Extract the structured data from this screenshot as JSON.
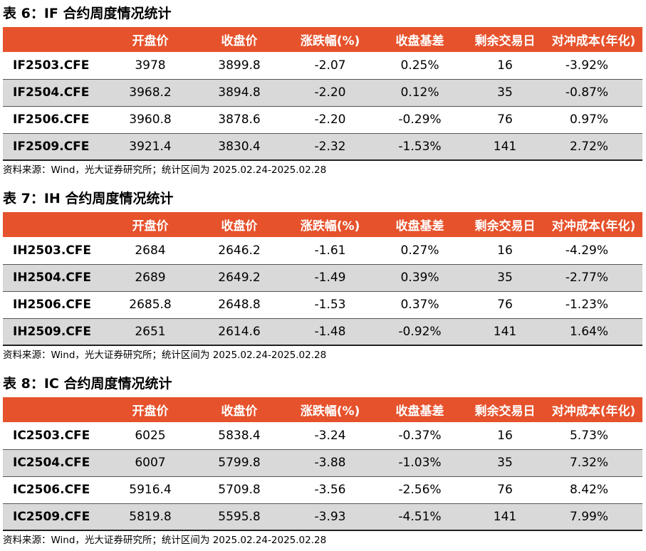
{
  "headers": [
    "",
    "开盘价",
    "收盘价",
    "涨跌幅(%)",
    "收盘基差",
    "剩余交易日",
    "对冲成本(年化)"
  ],
  "tables": [
    {
      "title": "表 6：IF 合约周度情况统计",
      "rows": [
        [
          "IF2503.CFE",
          "3978",
          "3899.8",
          "-2.07",
          "0.25%",
          "16",
          "-3.92%"
        ],
        [
          "IF2504.CFE",
          "3968.2",
          "3894.8",
          "-2.20",
          "0.12%",
          "35",
          "-0.87%"
        ],
        [
          "IF2506.CFE",
          "3960.8",
          "3878.6",
          "-2.20",
          "-0.29%",
          "76",
          "0.97%"
        ],
        [
          "IF2509.CFE",
          "3921.4",
          "3830.4",
          "-2.32",
          "-1.53%",
          "141",
          "2.72%"
        ]
      ],
      "source": "资料来源：Wind，光大证券研究所；统计区间为 2025.02.24-2025.02.28"
    },
    {
      "title": "表 7：IH 合约周度情况统计",
      "rows": [
        [
          "IH2503.CFE",
          "2684",
          "2646.2",
          "-1.61",
          "0.27%",
          "16",
          "-4.29%"
        ],
        [
          "IH2504.CFE",
          "2689",
          "2649.2",
          "-1.49",
          "0.39%",
          "35",
          "-2.77%"
        ],
        [
          "IH2506.CFE",
          "2685.8",
          "2648.8",
          "-1.53",
          "0.37%",
          "76",
          "-1.23%"
        ],
        [
          "IH2509.CFE",
          "2651",
          "2614.6",
          "-1.48",
          "-0.92%",
          "141",
          "1.64%"
        ]
      ],
      "source": "资料来源：Wind，光大证券研究所；统计区间为 2025.02.24-2025.02.28"
    },
    {
      "title": "表 8：IC 合约周度情况统计",
      "rows": [
        [
          "IC2503.CFE",
          "6025",
          "5838.4",
          "-3.24",
          "-0.37%",
          "16",
          "5.73%"
        ],
        [
          "IC2504.CFE",
          "6007",
          "5799.8",
          "-3.88",
          "-1.03%",
          "35",
          "7.32%"
        ],
        [
          "IC2506.CFE",
          "5916.4",
          "5709.8",
          "-3.56",
          "-2.56%",
          "76",
          "8.42%"
        ],
        [
          "IC2509.CFE",
          "5819.8",
          "5595.8",
          "-3.93",
          "-4.51%",
          "141",
          "7.99%"
        ]
      ],
      "source": "资料来源：Wind，光大证券研究所；统计区间为 2025.02.24-2025.02.28"
    }
  ]
}
